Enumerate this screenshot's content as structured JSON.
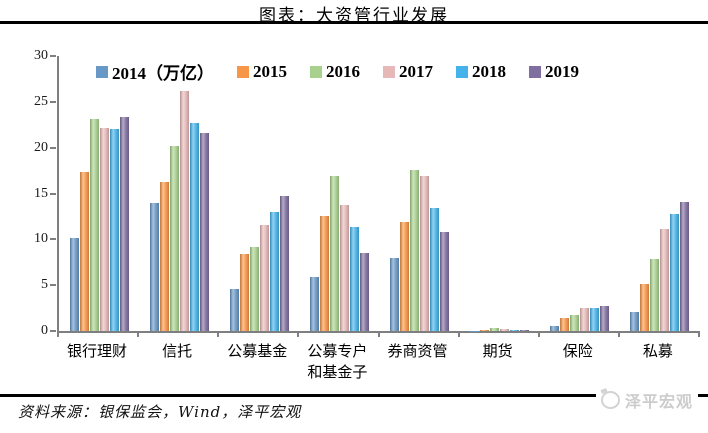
{
  "header": {
    "title": "图表：大资管行业发展"
  },
  "footer": {
    "source_note": "资料来源：银保监会，Wind，泽平宏观",
    "watermark_text": "泽平宏观"
  },
  "chart_data": {
    "type": "bar",
    "title": "图表：大资管行业发展",
    "unit": "万亿",
    "categories": [
      "银行理财",
      "信托",
      "公募基金",
      "公募专户\n和基金子",
      "券商资管",
      "期货",
      "保险",
      "私募"
    ],
    "series": [
      {
        "name": "2014（万亿）",
        "color": "#6798c6",
        "values": [
          10.1,
          14.0,
          4.6,
          5.9,
          8.0,
          0.05,
          0.5,
          2.1
        ]
      },
      {
        "name": "2015",
        "color": "#f79646",
        "values": [
          17.4,
          16.3,
          8.4,
          12.6,
          11.9,
          0.1,
          1.4,
          5.1
        ]
      },
      {
        "name": "2016",
        "color": "#a9d18e",
        "values": [
          23.1,
          20.2,
          9.2,
          16.9,
          17.6,
          0.28,
          1.7,
          7.9
        ]
      },
      {
        "name": "2017",
        "color": "#e6b9b8",
        "values": [
          22.2,
          26.2,
          11.6,
          13.7,
          16.9,
          0.25,
          2.5,
          11.1
        ]
      },
      {
        "name": "2018",
        "color": "#44b3e9",
        "values": [
          22.0,
          22.7,
          13.0,
          11.3,
          13.4,
          0.13,
          2.5,
          12.8
        ]
      },
      {
        "name": "2019",
        "color": "#7f6fa0",
        "values": [
          23.4,
          21.6,
          14.7,
          8.5,
          10.8,
          0.14,
          2.7,
          14.1
        ]
      }
    ],
    "xlabel": "",
    "ylabel": "",
    "ylim": [
      0,
      30
    ],
    "yticks": [
      0,
      5,
      10,
      15,
      20,
      25,
      30
    ],
    "legend_position": "top",
    "grid": false,
    "axis_color": "#7f7f7f"
  }
}
